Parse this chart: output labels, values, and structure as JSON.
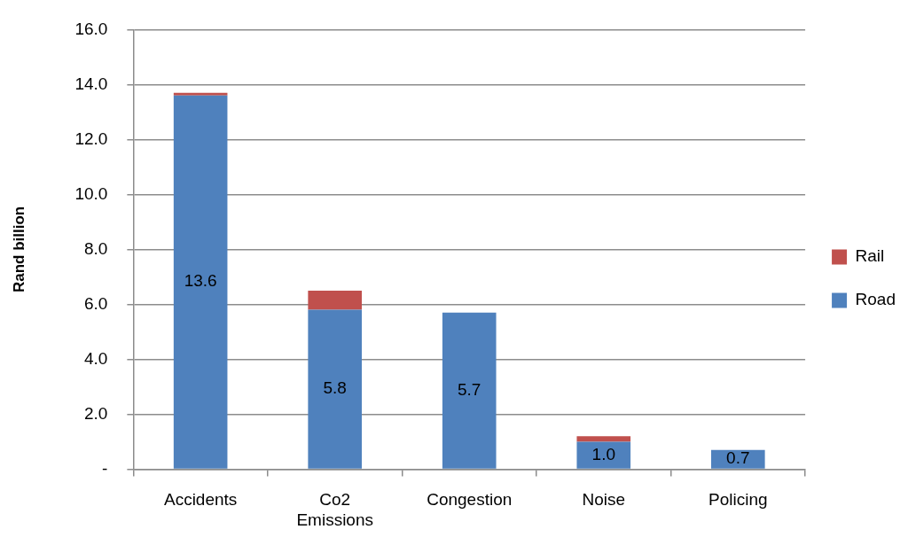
{
  "chart_data": {
    "type": "bar",
    "stacked": true,
    "ylabel": "Rand billion",
    "categories": [
      "Accidents",
      "Co2 Emissions",
      "Congestion",
      "Noise",
      "Policing"
    ],
    "series": [
      {
        "name": "Road",
        "color": "#4f81bd",
        "values": [
          13.6,
          5.8,
          5.7,
          1.0,
          0.7
        ],
        "value_labels": [
          "13.6",
          "5.8",
          "5.7",
          "1.0",
          "0.7"
        ]
      },
      {
        "name": "Rail",
        "color": "#c0504d",
        "values": [
          0.1,
          0.7,
          0,
          0.2,
          0
        ]
      }
    ],
    "ylim": [
      0,
      16
    ],
    "yticks": [
      {
        "value": 0,
        "label": "-"
      },
      {
        "value": 2,
        "label": "2.0"
      },
      {
        "value": 4,
        "label": "4.0"
      },
      {
        "value": 6,
        "label": "6.0"
      },
      {
        "value": 8,
        "label": "8.0"
      },
      {
        "value": 10,
        "label": "10.0"
      },
      {
        "value": 12,
        "label": "12.0"
      },
      {
        "value": 14,
        "label": "14.0"
      },
      {
        "value": 16,
        "label": "16.0"
      }
    ],
    "grid": "y",
    "legend": "right"
  }
}
